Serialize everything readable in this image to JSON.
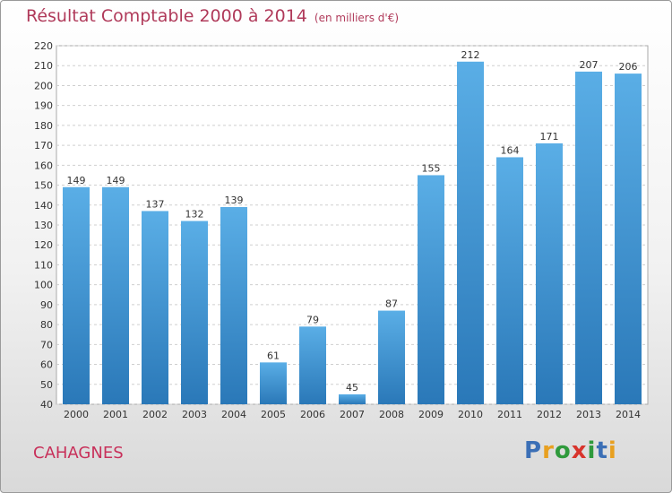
{
  "title": "Résultat Comptable 2000 à 2014",
  "subtitle": "(en milliers d'€)",
  "footer_name": "CAHAGNES",
  "logo": {
    "letters": [
      "P",
      "r",
      "o",
      "x",
      "i",
      "t",
      "i"
    ],
    "colors": [
      "#3b6fb6",
      "#e8a020",
      "#2f9a3c",
      "#d8342c",
      "#2f9a3c",
      "#3b6fb6",
      "#e8a020"
    ]
  },
  "chart_data": {
    "type": "bar",
    "title": "Résultat Comptable 2000 à 2014",
    "subtitle": "(en milliers d'€)",
    "categories": [
      "2000",
      "2001",
      "2002",
      "2003",
      "2004",
      "2005",
      "2006",
      "2007",
      "2008",
      "2009",
      "2010",
      "2011",
      "2012",
      "2013",
      "2014"
    ],
    "values": [
      149,
      149,
      137,
      132,
      139,
      61,
      79,
      45,
      87,
      155,
      212,
      164,
      171,
      207,
      206
    ],
    "ylim": [
      40,
      220
    ],
    "yticks": [
      40,
      50,
      60,
      70,
      80,
      90,
      100,
      110,
      120,
      130,
      140,
      150,
      160,
      170,
      180,
      190,
      200,
      210,
      220
    ],
    "grid": true,
    "bar_color_top": "#5aaee6",
    "bar_color_bottom": "#2a78b8",
    "xlabel": "",
    "ylabel": ""
  }
}
